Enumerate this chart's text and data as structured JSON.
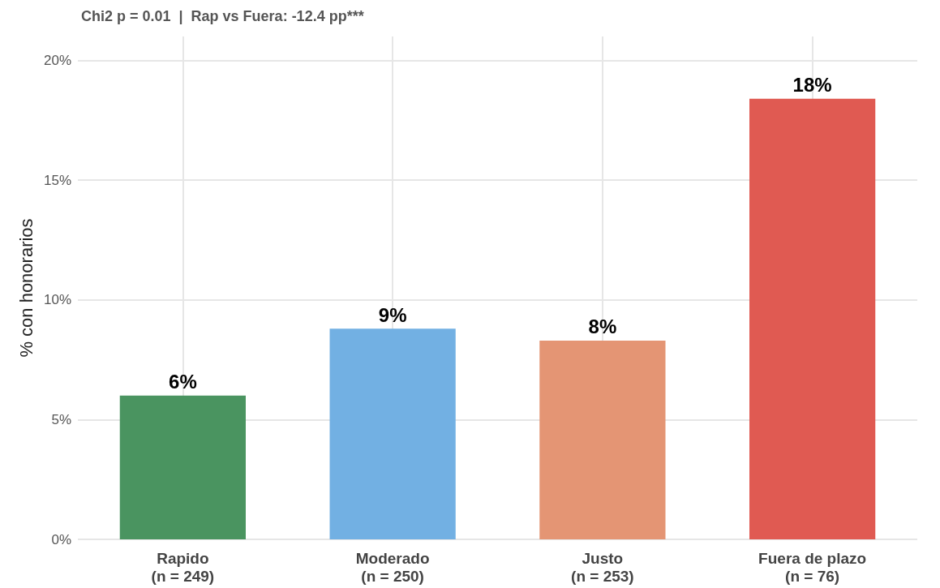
{
  "chart_data": {
    "type": "bar",
    "title": "Chi2 p = 0.01  |  Rap vs Fuera: -12.4 pp***",
    "ylabel": "% con honorarios",
    "categories": [
      "Rapido\n(n = 249)",
      "Moderado\n(n = 250)",
      "Justo\n(n = 253)",
      "Fuera de plazo\n(n = 76)"
    ],
    "values": [
      6.0,
      8.8,
      8.3,
      18.4
    ],
    "colors": [
      "#4a9460",
      "#72b0e3",
      "#e49574",
      "#e05a52"
    ],
    "value_labels": [
      "6%",
      "9%",
      "8%",
      "18%"
    ],
    "ylim": [
      0,
      21
    ],
    "yticks": [
      {
        "value": 0,
        "label": "0%"
      },
      {
        "value": 5,
        "label": "5%"
      },
      {
        "value": 10,
        "label": "10%"
      },
      {
        "value": 15,
        "label": "15%"
      },
      {
        "value": 20,
        "label": "20%"
      }
    ],
    "grid": true
  }
}
